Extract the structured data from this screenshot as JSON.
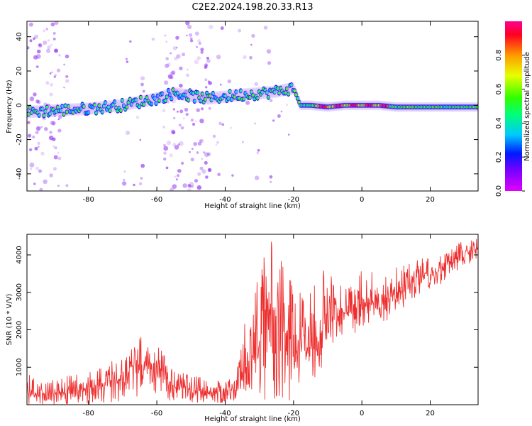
{
  "title": "C2E2.2024.198.20.33.R13",
  "colors": {
    "snr_line": "#ee2f2f",
    "axis": "#000000",
    "speckle": "#8b2cf0"
  },
  "chart_data": [
    {
      "type": "heatmap",
      "name": "spectrogram",
      "xlabel": "Height of straight line (km)",
      "ylabel": "Frequency (Hz)",
      "xlim": [
        -98,
        34
      ],
      "ylim": [
        -50,
        49
      ],
      "xticks": [
        -80,
        -60,
        -40,
        -20,
        0,
        20
      ],
      "yticks": [
        -40,
        -20,
        0,
        20,
        40
      ],
      "grid": false,
      "colormap": "gist_rainbow (purple to red)",
      "colorbar": {
        "label": "Normalized spectral amplitude",
        "range": [
          0.0,
          1.0
        ],
        "ticks": [
          0.0,
          0.2,
          0.4,
          0.6,
          0.8
        ]
      },
      "trace": {
        "description_points_x": [
          -98,
          -90,
          -80,
          -70,
          -60,
          -55,
          -45,
          -40,
          -36,
          -30,
          -25,
          -20,
          -18,
          -15,
          -10,
          -5,
          0,
          5,
          10,
          15,
          20,
          25,
          30,
          34
        ],
        "description_points_y": [
          -4,
          -3,
          -2,
          0,
          4,
          7,
          4,
          5,
          6,
          7,
          8,
          10,
          0,
          0,
          -1,
          0,
          0,
          0,
          -1,
          -1,
          -1,
          -1,
          -1,
          -1
        ],
        "peak_amplitude_region_x": [
          -13,
          8
        ],
        "peak_amplitude": 0.95
      }
    },
    {
      "type": "line",
      "name": "snr",
      "xlabel": "Height of straight line (km)",
      "ylabel": "SNR (10 * V/V)",
      "xlim": [
        -98,
        34
      ],
      "ylim": [
        0,
        4550
      ],
      "xticks": [
        -80,
        -60,
        -40,
        -20,
        0,
        20
      ],
      "yticks": [
        1000,
        2000,
        3000,
        4000
      ],
      "grid": false,
      "series": [
        {
          "x": [
            -98,
            -95,
            -90,
            -85,
            -80,
            -75,
            -70,
            -67,
            -65,
            -62,
            -60,
            -57,
            -55,
            -50,
            -45,
            -40,
            -37,
            -35,
            -33,
            -30,
            -28,
            -26,
            -24,
            -22,
            -20,
            -18,
            -16,
            -14,
            -12,
            -10,
            -8,
            -6,
            -4,
            -2,
            0,
            3,
            5,
            8,
            10,
            13,
            15,
            18,
            20,
            23,
            25,
            28,
            30,
            34
          ],
          "y": [
            300,
            250,
            300,
            350,
            450,
            600,
            700,
            1000,
            1100,
            1150,
            1100,
            700,
            500,
            400,
            350,
            300,
            400,
            700,
            1200,
            1700,
            2300,
            2500,
            2200,
            2200,
            2000,
            1400,
            1500,
            1600,
            1800,
            2300,
            2600,
            2500,
            2400,
            2600,
            2800,
            2700,
            2700,
            2900,
            3000,
            3100,
            3300,
            3500,
            3500,
            3600,
            3800,
            3900,
            4100,
            4150
          ],
          "envelope_high": [
            900,
            600,
            700,
            800,
            900,
            1100,
            1300,
            1600,
            1800,
            2050,
            1900,
            1300,
            900,
            800,
            700,
            600,
            800,
            1800,
            3000,
            3500,
            4450,
            4450,
            4000,
            3500,
            3800,
            3000,
            2800,
            3300,
            3800,
            3400,
            3500,
            3200,
            3200,
            3500,
            3800,
            3600,
            3400,
            3500,
            3700,
            3800,
            3900,
            3900,
            3900,
            4000,
            4100,
            4300,
            4400,
            4450
          ],
          "envelope_low": [
            0,
            0,
            0,
            0,
            0,
            50,
            100,
            200,
            200,
            300,
            300,
            100,
            50,
            50,
            50,
            50,
            100,
            300,
            400,
            200,
            100,
            50,
            100,
            100,
            150,
            200,
            300,
            500,
            700,
            1200,
            1700,
            1800,
            1700,
            1900,
            2100,
            2000,
            2100,
            2300,
            2500,
            2600,
            2800,
            3000,
            3100,
            3200,
            3400,
            3600,
            3700,
            3800
          ]
        }
      ]
    }
  ]
}
